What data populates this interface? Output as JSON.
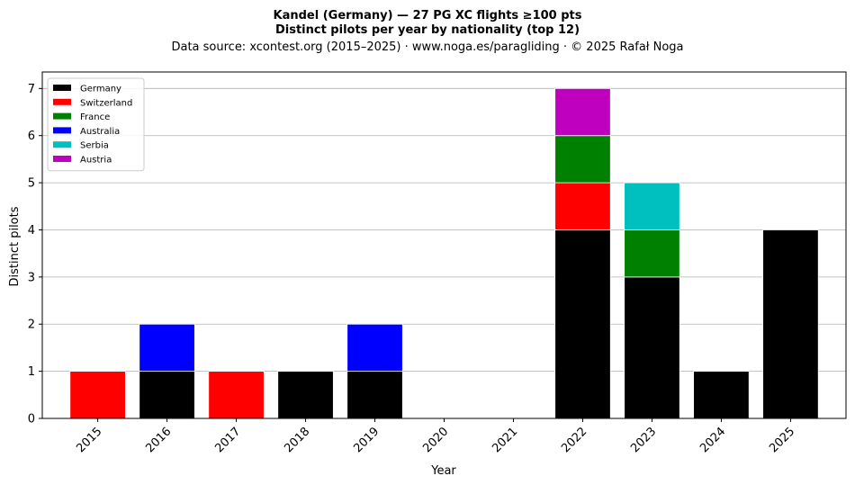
{
  "chart_data": {
    "type": "bar",
    "stacked": true,
    "title_line1": "Kandel (Germany)  —  27 PG XC flights ≥100 pts",
    "title_line2": "Distinct pilots per year by nationality (top 12)",
    "subtitle": "Data source: xcontest.org (2015–2025)  ·  www.noga.es/paragliding  ·  © 2025 Rafał Noga",
    "xlabel": "Year",
    "ylabel": "Distinct pilots",
    "ylim": [
      0,
      7.35
    ],
    "yticks": [
      0,
      1,
      2,
      3,
      4,
      5,
      6,
      7
    ],
    "grid": "y",
    "legend_position": "top-left",
    "categories": [
      "2015",
      "2016",
      "2017",
      "2018",
      "2019",
      "2020",
      "2021",
      "2022",
      "2023",
      "2024",
      "2025"
    ],
    "series": [
      {
        "name": "Germany",
        "color": "#000000",
        "values": [
          0,
          1,
          0,
          1,
          1,
          0,
          0,
          4,
          3,
          1,
          4
        ]
      },
      {
        "name": "Switzerland",
        "color": "#ff0000",
        "values": [
          1,
          0,
          1,
          0,
          0,
          0,
          0,
          1,
          0,
          0,
          0
        ]
      },
      {
        "name": "France",
        "color": "#008000",
        "values": [
          0,
          0,
          0,
          0,
          0,
          0,
          0,
          1,
          1,
          0,
          0
        ]
      },
      {
        "name": "Australia",
        "color": "#0000ff",
        "values": [
          0,
          1,
          0,
          0,
          1,
          0,
          0,
          0,
          0,
          0,
          0
        ]
      },
      {
        "name": "Serbia",
        "color": "#00bfbf",
        "values": [
          0,
          0,
          0,
          0,
          0,
          0,
          0,
          0,
          1,
          0,
          0
        ]
      },
      {
        "name": "Austria",
        "color": "#bf00bf",
        "values": [
          0,
          0,
          0,
          0,
          0,
          0,
          0,
          1,
          0,
          0,
          0
        ]
      }
    ]
  }
}
